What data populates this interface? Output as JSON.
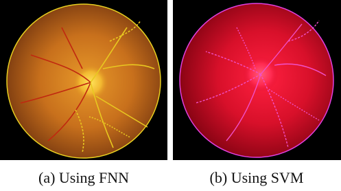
{
  "figure": {
    "panels": [
      {
        "caption": "(a) Using FNN"
      },
      {
        "caption": "(b) Using SVM"
      }
    ]
  }
}
